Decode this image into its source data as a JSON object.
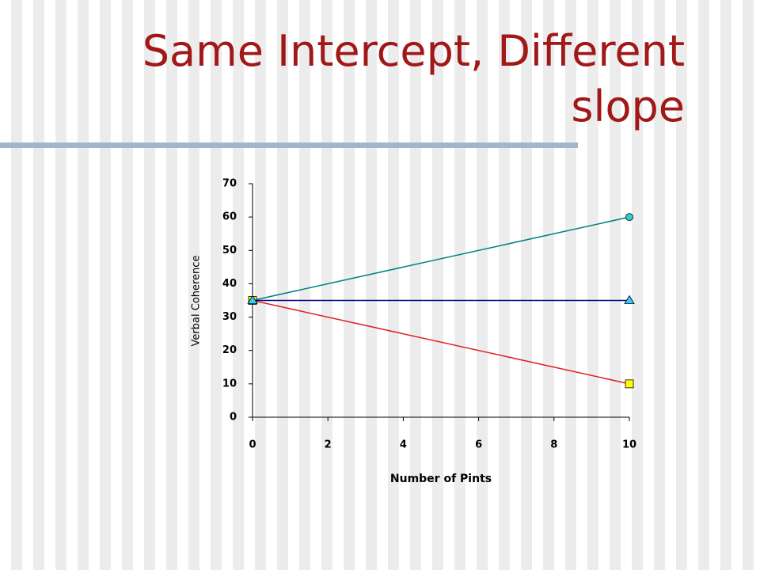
{
  "chart_data": {
    "type": "line",
    "title": "Same Intercept, Different slope",
    "x_label": "Number of Pints",
    "y_label": "Verbal Coherence",
    "x": [
      0,
      10
    ],
    "series": [
      {
        "color": "#008080",
        "marker": "circle",
        "marker_color": "#33cccc",
        "values": [
          35,
          60
        ]
      },
      {
        "color": "#e02020",
        "marker": "square",
        "marker_color": "#ffff00",
        "values": [
          35,
          10
        ]
      },
      {
        "color": "#000080",
        "marker": "triangle",
        "marker_color": "#33ccff",
        "values": [
          35,
          35
        ]
      }
    ],
    "xlim": [
      0,
      10
    ],
    "xticks": [
      0,
      2,
      4,
      6,
      8,
      10
    ],
    "ylim": [
      0,
      70
    ],
    "yticks": [
      0,
      10,
      20,
      30,
      40,
      50,
      60,
      70
    ]
  }
}
